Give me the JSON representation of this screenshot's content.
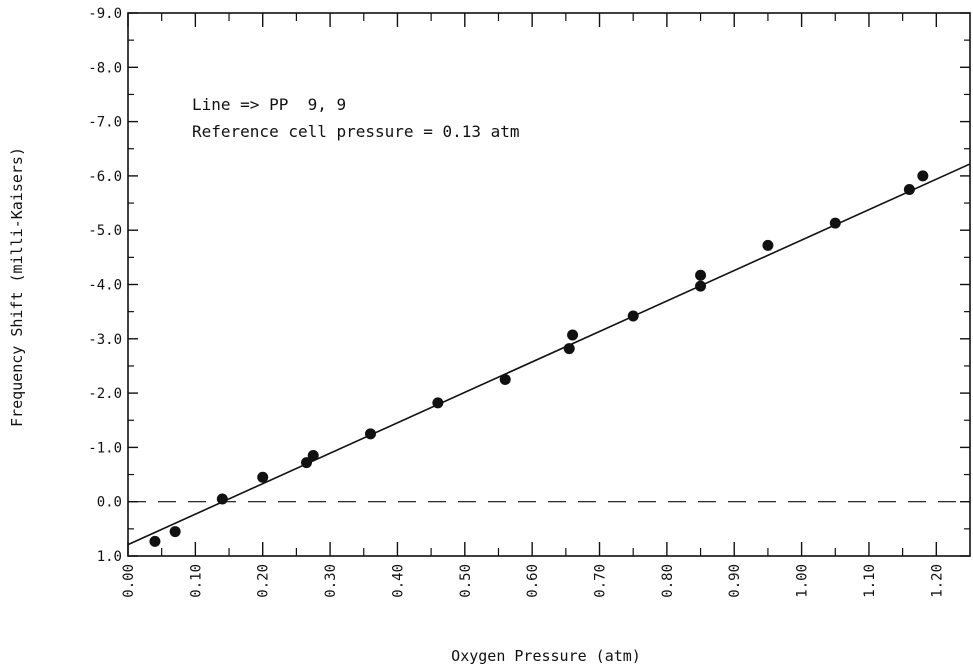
{
  "chart_data": {
    "type": "scatter",
    "xlabel": "Oxygen Pressure (atm)",
    "ylabel": "Frequency Shift (milli-Kaisers)",
    "xlim": [
      0.0,
      1.25
    ],
    "ylim": [
      1.0,
      -9.0
    ],
    "x_ticks": [
      "0.00",
      "0.10",
      "0.20",
      "0.30",
      "0.40",
      "0.50",
      "0.60",
      "0.70",
      "0.80",
      "0.90",
      "1.00",
      "1.10",
      "1.20"
    ],
    "y_ticks": [
      "-9.0",
      "-8.0",
      "-7.0",
      "-6.0",
      "-5.0",
      "-4.0",
      "-3.0",
      "-2.0",
      "-1.0",
      "0.0",
      "1.0"
    ],
    "annotations": [
      "Line => PP  9, 9",
      "Reference cell pressure = 0.13 atm"
    ],
    "series": [
      {
        "points": [
          {
            "x": 0.04,
            "y": 0.73
          },
          {
            "x": 0.07,
            "y": 0.55
          },
          {
            "x": 0.14,
            "y": -0.05
          },
          {
            "x": 0.2,
            "y": -0.45
          },
          {
            "x": 0.265,
            "y": -0.72
          },
          {
            "x": 0.275,
            "y": -0.85
          },
          {
            "x": 0.36,
            "y": -1.25
          },
          {
            "x": 0.46,
            "y": -1.82
          },
          {
            "x": 0.56,
            "y": -2.25
          },
          {
            "x": 0.655,
            "y": -2.82
          },
          {
            "x": 0.66,
            "y": -3.07
          },
          {
            "x": 0.75,
            "y": -3.42
          },
          {
            "x": 0.85,
            "y": -3.97
          },
          {
            "x": 0.85,
            "y": -4.17
          },
          {
            "x": 0.95,
            "y": -4.72
          },
          {
            "x": 1.05,
            "y": -5.13
          },
          {
            "x": 1.16,
            "y": -5.75
          },
          {
            "x": 1.18,
            "y": -6.0
          }
        ]
      }
    ],
    "fit_line": {
      "x": [
        0.0,
        1.25
      ],
      "y": [
        0.79,
        -6.22
      ]
    },
    "reference_line": {
      "y": 0.0,
      "style": "dashed"
    }
  }
}
